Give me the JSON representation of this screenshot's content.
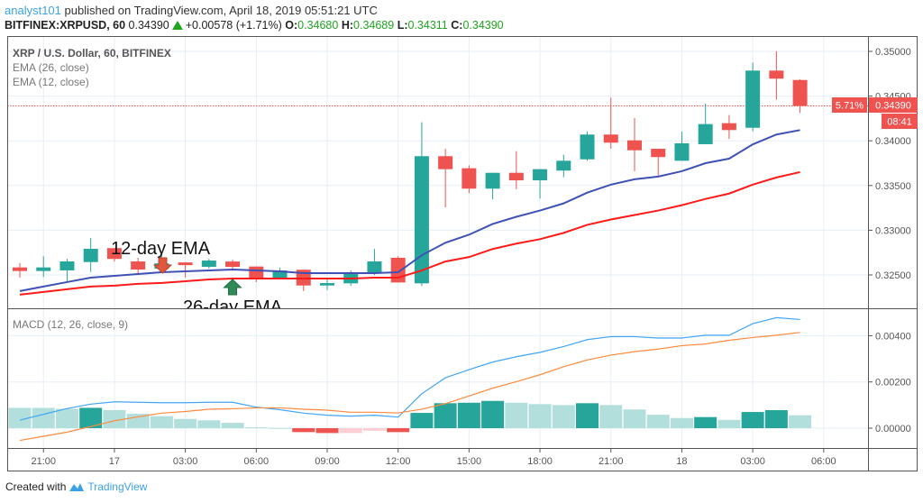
{
  "header": {
    "author": "analyst101",
    "published": "published on TradingView.com, April 18, 2019 05:51:21 UTC",
    "symbol": "BITFINEX:XRPUSD, 60",
    "last": "0.34390",
    "change": "+0.00578 (+1.71%)",
    "o_label": "O:",
    "o": "0.34680",
    "h_label": "H:",
    "h": "0.34689",
    "l_label": "L:",
    "l": "0.34311",
    "c_label": "C:",
    "c": "0.34390"
  },
  "pane_titles": {
    "main": "XRP / U.S. Dollar, 60, BITFINEX",
    "ema26": "EMA (26, close)",
    "ema12": "EMA (12, close)",
    "macd": "MACD (12, 26, close, 9)"
  },
  "annotations": {
    "ema12_label": "12-day EMA",
    "ema26_label": "26-day EMA"
  },
  "price_marker": {
    "percent": "5.71%",
    "price": "0.34390",
    "countdown": "08:41",
    "value": 0.3439
  },
  "footer": {
    "created_with": "Created with",
    "brand": "TradingView"
  },
  "colors": {
    "up": "#26a69a",
    "down": "#ef5350",
    "ema12": "#3f51b5",
    "ema26": "#ff1a1a",
    "macd": "#42a5f5",
    "signal": "#ff8a3d",
    "hist_dg": "#26a69a",
    "hist_lg": "#b2dfdb",
    "hist_dr": "#ef5350",
    "hist_lr": "#ffcdd2"
  },
  "chart_data": [
    {
      "type": "candlestick",
      "title": "XRP / U.S. Dollar, 60, BITFINEX",
      "ylim": [
        0.3215,
        0.3515
      ],
      "yticks": [
        "0.35000",
        "0.34500",
        "0.34000",
        "0.33500",
        "0.33000",
        "0.32500"
      ],
      "xticks": [
        "21:00",
        "17",
        "03:00",
        "06:00",
        "09:00",
        "12:00",
        "15:00",
        "18:00",
        "21:00",
        "18",
        "03:00",
        "06:00"
      ],
      "ohlc": [
        [
          0.32584,
          0.32634,
          0.3247,
          0.32544
        ],
        [
          0.32544,
          0.32709,
          0.32477,
          0.32584
        ],
        [
          0.32551,
          0.32679,
          0.32416,
          0.32651
        ],
        [
          0.32644,
          0.32913,
          0.32533,
          0.32792
        ],
        [
          0.328,
          0.328,
          0.3265,
          0.32679
        ],
        [
          0.32651,
          0.32692,
          0.325,
          0.3256
        ],
        [
          0.3257,
          0.3275,
          0.3255,
          0.3263
        ],
        [
          0.3264,
          0.3264,
          0.3247,
          0.3261
        ],
        [
          0.32591,
          0.3268,
          0.3257,
          0.32661
        ],
        [
          0.3265,
          0.3267,
          0.3256,
          0.3259
        ],
        [
          0.32594,
          0.32594,
          0.3242,
          0.3245
        ],
        [
          0.3246,
          0.3258,
          0.3245,
          0.3255
        ],
        [
          0.32558,
          0.32558,
          0.3232,
          0.32382
        ],
        [
          0.32382,
          0.3246,
          0.3233,
          0.32409
        ],
        [
          0.32406,
          0.3255,
          0.3238,
          0.32517
        ],
        [
          0.32517,
          0.3279,
          0.325,
          0.32651
        ],
        [
          0.32692,
          0.3271,
          0.32416,
          0.32416
        ],
        [
          0.32406,
          0.34207,
          0.32376,
          0.33828
        ],
        [
          0.33828,
          0.33911,
          0.33256,
          0.33683
        ],
        [
          0.33693,
          0.33726,
          0.33415,
          0.33465
        ],
        [
          0.33465,
          0.33642,
          0.33347,
          0.33642
        ],
        [
          0.33642,
          0.33884,
          0.33458,
          0.33558
        ],
        [
          0.33558,
          0.33683,
          0.33354,
          0.33683
        ],
        [
          0.33667,
          0.33844,
          0.33593,
          0.33777
        ],
        [
          0.33793,
          0.34104,
          0.33777,
          0.3407
        ],
        [
          0.3407,
          0.34483,
          0.33911,
          0.33979
        ],
        [
          0.34005,
          0.34254,
          0.33659,
          0.33894
        ],
        [
          0.33911,
          0.33911,
          0.3361,
          0.33818
        ],
        [
          0.33777,
          0.34104,
          0.33777,
          0.33972
        ],
        [
          0.33962,
          0.34415,
          0.33962,
          0.34187
        ],
        [
          0.34197,
          0.34288,
          0.3402,
          0.3412
        ],
        [
          0.34146,
          0.34876,
          0.34106,
          0.34785
        ],
        [
          0.34785,
          0.35003,
          0.34459,
          0.34695
        ],
        [
          0.3468,
          0.34689,
          0.34311,
          0.3439
        ]
      ],
      "series": [
        {
          "name": "EMA (12, close)",
          "values": [
            0.3232,
            0.3237,
            0.3242,
            0.3247,
            0.3249,
            0.3251,
            0.3253,
            0.3254,
            0.3255,
            0.3256,
            0.3255,
            0.3254,
            0.3252,
            0.3252,
            0.3252,
            0.3252,
            0.3253,
            0.3272,
            0.3286,
            0.3295,
            0.3307,
            0.3315,
            0.3322,
            0.333,
            0.3342,
            0.3351,
            0.3357,
            0.336,
            0.3366,
            0.3375,
            0.338,
            0.3396,
            0.3407,
            0.3412
          ]
        },
        {
          "name": "EMA (26, close)",
          "values": [
            0.3228,
            0.3231,
            0.3234,
            0.3237,
            0.3238,
            0.324,
            0.3241,
            0.3243,
            0.3245,
            0.3246,
            0.3246,
            0.3246,
            0.3246,
            0.3246,
            0.3246,
            0.3247,
            0.3247,
            0.3255,
            0.3265,
            0.327,
            0.3279,
            0.3285,
            0.329,
            0.3297,
            0.3306,
            0.3312,
            0.3317,
            0.3322,
            0.3328,
            0.3335,
            0.3341,
            0.3351,
            0.3359,
            0.3365
          ]
        }
      ]
    },
    {
      "type": "bar+line",
      "title": "MACD (12, 26, close, 9)",
      "yticks": [
        "0.00400",
        "0.00200",
        "0.00000"
      ],
      "histogram": [
        0.00088,
        0.00088,
        0.00084,
        0.00088,
        0.00078,
        0.00062,
        0.00052,
        0.0004,
        0.00034,
        0.00023,
        4e-05,
        1e-05,
        -0.00017,
        -0.00021,
        -0.00021,
        -0.00011,
        -0.00017,
        0.00066,
        0.00108,
        0.0011,
        0.00118,
        0.0011,
        0.00104,
        0.001,
        0.00108,
        0.001,
        0.00081,
        0.00058,
        0.00044,
        0.00048,
        0.00036,
        0.0007,
        0.00078,
        0.00056
      ],
      "histogram_shade": [
        "lg",
        "lg",
        "lg",
        "dg",
        "lg",
        "lg",
        "lg",
        "lg",
        "lg",
        "lg",
        "lg",
        "lg",
        "dr",
        "dr",
        "lr",
        "lr",
        "dr",
        "dg",
        "dg",
        "dg",
        "dg",
        "lg",
        "lg",
        "lg",
        "dg",
        "lg",
        "lg",
        "lg",
        "lg",
        "dg",
        "lg",
        "dg",
        "dg",
        "lg"
      ],
      "series": [
        {
          "name": "MACD",
          "values": [
            0.00035,
            0.0006,
            0.00085,
            0.00104,
            0.00114,
            0.00112,
            0.0011,
            0.0011,
            0.00112,
            0.00112,
            0.00091,
            0.0008,
            0.00065,
            0.00056,
            0.00052,
            0.00056,
            0.00048,
            0.00149,
            0.00218,
            0.00253,
            0.00286,
            0.00309,
            0.00328,
            0.00353,
            0.00383,
            0.00396,
            0.00396,
            0.0039,
            0.0039,
            0.00402,
            0.00402,
            0.00452,
            0.00478,
            0.0047
          ]
        },
        {
          "name": "Signal",
          "values": [
            -0.00053,
            -0.00035,
            -0.00017,
            7e-05,
            0.00032,
            0.00049,
            0.00065,
            0.00072,
            0.00082,
            0.00084,
            0.00088,
            0.00088,
            0.00082,
            0.00078,
            0.00069,
            0.00069,
            0.00066,
            0.00082,
            0.00106,
            0.00139,
            0.00173,
            0.00201,
            0.00231,
            0.00266,
            0.00295,
            0.00316,
            0.00331,
            0.00342,
            0.00357,
            0.00364,
            0.0038,
            0.00392,
            0.00402,
            0.00414
          ]
        }
      ]
    }
  ]
}
